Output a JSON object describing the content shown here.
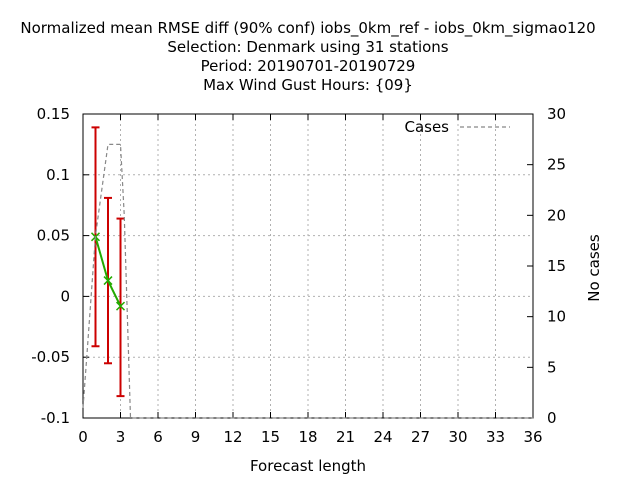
{
  "chart_data": {
    "type": "line",
    "title_lines": [
      "Normalized mean RMSE diff (90% conf) iobs_0km_ref - iobs_0km_sigmao120",
      "Selection: Denmark using    31 stations",
      "Period: 20190701-20190729",
      "Max Wind Gust   Hours: {09}"
    ],
    "xlabel": "Forecast length",
    "ylabel": "",
    "y2label": "No cases",
    "xlim": [
      0,
      36
    ],
    "ylim": [
      -0.1,
      0.15
    ],
    "y2lim": [
      0,
      30
    ],
    "x_ticks": [
      "0",
      "3",
      "6",
      "9",
      "12",
      "15",
      "18",
      "21",
      "24",
      "27",
      "30",
      "33",
      "36"
    ],
    "y_ticks": [
      "-0.1",
      "-0.05",
      "0",
      "0.05",
      "0.1",
      "0.15"
    ],
    "y2_ticks": [
      "0",
      "5",
      "10",
      "15",
      "20",
      "25",
      "30"
    ],
    "x_tick_values": [
      0,
      3,
      6,
      9,
      12,
      15,
      18,
      21,
      24,
      27,
      30,
      33,
      36
    ],
    "y_tick_values": [
      -0.1,
      -0.05,
      0,
      0.05,
      0.1,
      0.15
    ],
    "y2_tick_values": [
      0,
      5,
      10,
      15,
      20,
      25,
      30
    ],
    "grid": true,
    "legend_position": "top-right",
    "series": [
      {
        "kind": "diff",
        "color": "#22aa00",
        "errcolor": "#cc0000",
        "x": [
          1,
          2,
          3
        ],
        "y": [
          0.049,
          0.013,
          -0.008
        ],
        "lower": [
          -0.041,
          -0.055,
          -0.082
        ],
        "upper": [
          0.139,
          0.081,
          0.064
        ]
      },
      {
        "name": "Cases",
        "kind": "cases",
        "axis": "y2",
        "color": "#888888",
        "x": [
          0,
          0.3,
          1,
          2,
          3,
          3.3,
          3.8,
          36
        ],
        "y": [
          1,
          6,
          18,
          27,
          27,
          20,
          0,
          0
        ]
      }
    ]
  }
}
